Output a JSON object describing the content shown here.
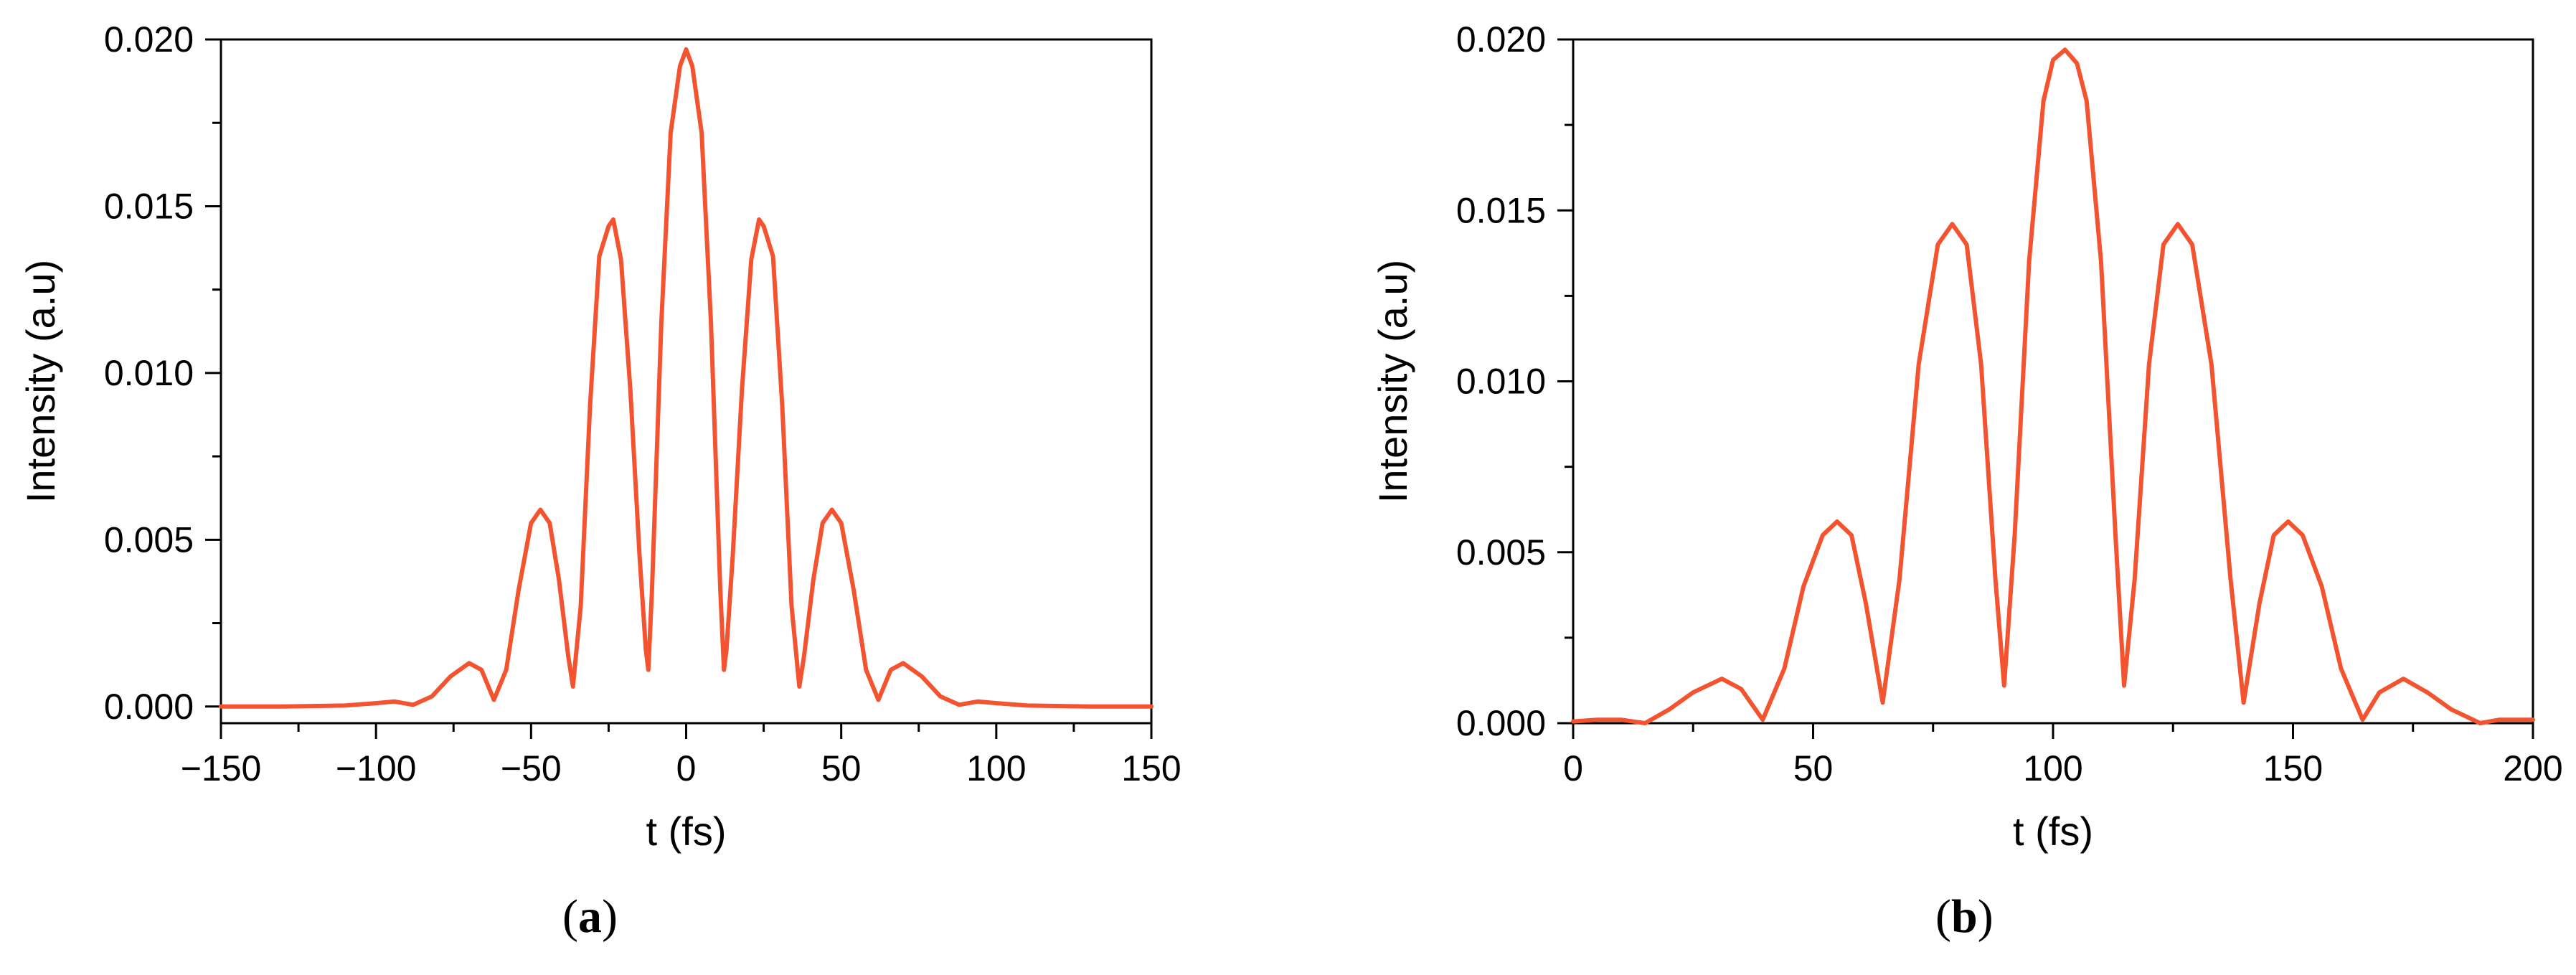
{
  "figure": {
    "panels": [
      {
        "label_open": "(",
        "label_letter": "a",
        "label_close": ")"
      },
      {
        "label_open": "(",
        "label_letter": "b",
        "label_close": ")"
      }
    ]
  },
  "chart_data": [
    {
      "type": "line",
      "title": "",
      "xlabel": "t (fs)",
      "ylabel": "Intensity (a.u)",
      "xlim": [
        -150,
        150
      ],
      "ylim": [
        -0.0005,
        0.02
      ],
      "xticks": [
        -150,
        -100,
        -50,
        0,
        50,
        100,
        150
      ],
      "xtick_labels": [
        "−150",
        "−100",
        "−50",
        "0",
        "50",
        "100",
        "150"
      ],
      "yticks": [
        0.0,
        0.005,
        0.01,
        0.015,
        0.02
      ],
      "ytick_labels": [
        "0.000",
        "0.005",
        "0.010",
        "0.015",
        "0.020"
      ],
      "grid": false,
      "legend": "none",
      "color": "#f4532f",
      "series": [
        {
          "x": [
            -150,
            -130,
            -110,
            -100,
            -94,
            -88,
            -82,
            -76,
            -70,
            -66,
            -62,
            -58,
            -54,
            -50,
            -47,
            -44,
            -41,
            -38,
            -36.5,
            -34,
            -31,
            -28,
            -25,
            -23.5,
            -21,
            -18,
            -15,
            -13,
            -12.2,
            -11,
            -8,
            -5,
            -2,
            0,
            2,
            5,
            8,
            11,
            12.2,
            13,
            15,
            18,
            21,
            23.5,
            25,
            28,
            31,
            34,
            36.5,
            38,
            41,
            44,
            47,
            50,
            54,
            58,
            62,
            66,
            70,
            76,
            82,
            88,
            94,
            100,
            110,
            130,
            150
          ],
          "y": [
            0.0,
            0.0,
            3e-05,
            0.0001,
            0.00015,
            5e-05,
            0.0003,
            0.0009,
            0.0013,
            0.0011,
            0.0002,
            0.0011,
            0.0035,
            0.0055,
            0.0059,
            0.0055,
            0.0038,
            0.0015,
            0.0006,
            0.003,
            0.009,
            0.0135,
            0.0144,
            0.0146,
            0.0134,
            0.0095,
            0.0045,
            0.0017,
            0.0011,
            0.0035,
            0.0115,
            0.0172,
            0.0192,
            0.0197,
            0.0192,
            0.0172,
            0.0115,
            0.0035,
            0.0011,
            0.0017,
            0.0045,
            0.0095,
            0.0134,
            0.0146,
            0.0144,
            0.0135,
            0.009,
            0.003,
            0.0006,
            0.0015,
            0.0038,
            0.0055,
            0.0059,
            0.0055,
            0.0035,
            0.0011,
            0.0002,
            0.0011,
            0.0013,
            0.0009,
            0.0003,
            5e-05,
            0.00015,
            0.0001,
            3e-05,
            0.0,
            0.0
          ]
        }
      ]
    },
    {
      "type": "line",
      "title": "",
      "xlabel": "t (fs)",
      "ylabel": "Intensity (a.u)",
      "xlim": [
        0,
        200
      ],
      "ylim": [
        0.0,
        0.02
      ],
      "xticks": [
        0,
        50,
        100,
        150,
        200
      ],
      "xtick_labels": [
        "0",
        "50",
        "100",
        "150",
        "200"
      ],
      "yticks": [
        0.0,
        0.005,
        0.01,
        0.015,
        0.02
      ],
      "ytick_labels": [
        "0.000",
        "0.005",
        "0.010",
        "0.015",
        "0.020"
      ],
      "grid": false,
      "legend": "none",
      "color": "#f4532f",
      "series": [
        {
          "x": [
            0,
            5,
            10,
            15,
            20,
            25,
            31,
            35,
            39.5,
            44,
            48,
            52,
            55,
            58,
            61,
            64.5,
            68,
            72,
            76,
            79,
            82,
            85,
            88,
            89.8,
            92,
            95,
            98,
            100,
            102.5,
            105,
            107,
            110,
            113,
            114.8,
            117,
            120,
            123,
            126,
            129,
            133,
            137,
            139.7,
            143,
            146,
            149,
            152,
            156,
            160,
            164.5,
            168,
            173,
            178,
            183,
            189,
            193,
            200
          ],
          "y": [
            5e-05,
            0.0001,
            0.0001,
            0.0,
            0.0004,
            0.0009,
            0.0013,
            0.001,
            0.0001,
            0.0016,
            0.004,
            0.0055,
            0.0059,
            0.0055,
            0.0035,
            0.0006,
            0.0042,
            0.0105,
            0.014,
            0.0146,
            0.014,
            0.0105,
            0.0042,
            0.0011,
            0.0055,
            0.0135,
            0.0182,
            0.0194,
            0.0197,
            0.0193,
            0.0182,
            0.0135,
            0.0055,
            0.0011,
            0.0042,
            0.0105,
            0.014,
            0.0146,
            0.014,
            0.0105,
            0.0042,
            0.0006,
            0.0035,
            0.0055,
            0.0059,
            0.0055,
            0.004,
            0.0016,
            0.0001,
            0.0009,
            0.0013,
            0.0009,
            0.0004,
            0.0,
            0.0001,
            0.0001
          ]
        }
      ]
    }
  ]
}
